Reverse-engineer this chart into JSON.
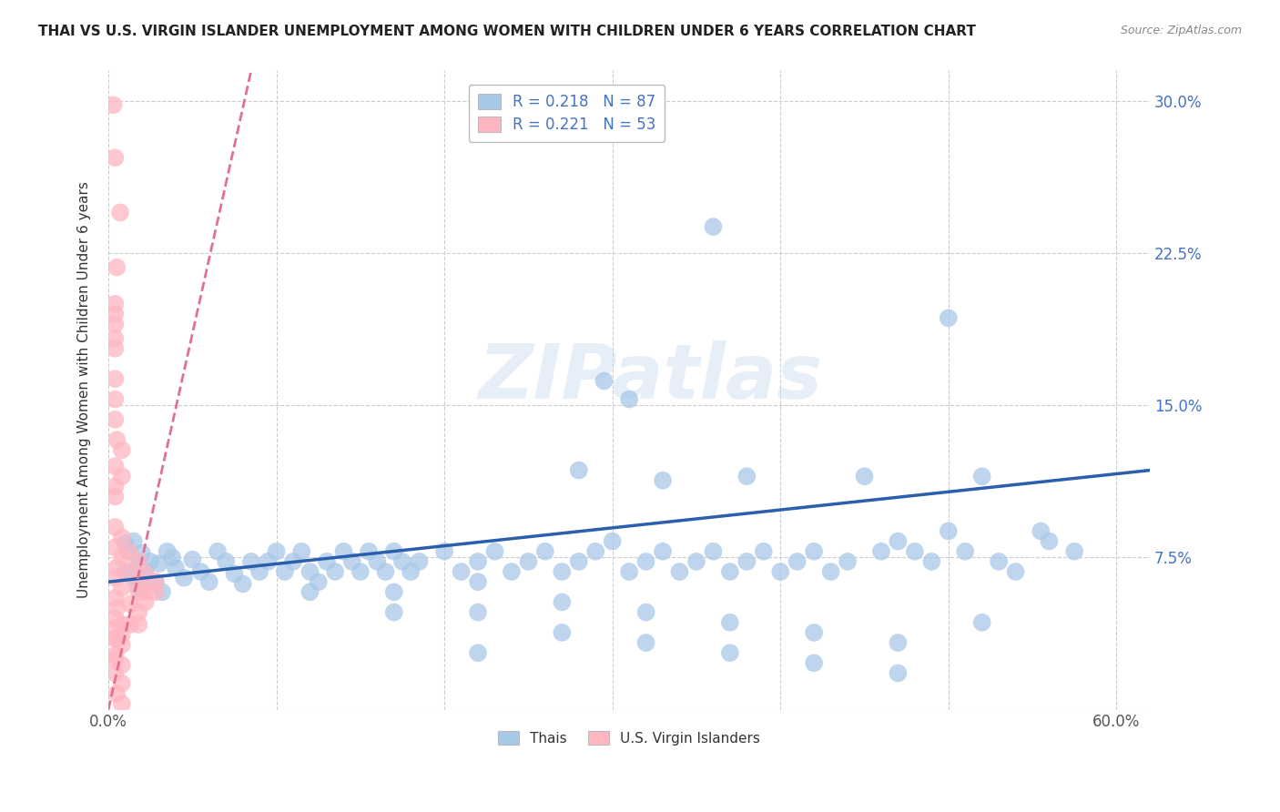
{
  "title": "THAI VS U.S. VIRGIN ISLANDER UNEMPLOYMENT AMONG WOMEN WITH CHILDREN UNDER 6 YEARS CORRELATION CHART",
  "source": "Source: ZipAtlas.com",
  "ylabel": "Unemployment Among Women with Children Under 6 years",
  "xlim": [
    0.0,
    0.62
  ],
  "ylim": [
    0.0,
    0.315
  ],
  "xticks": [
    0.0,
    0.1,
    0.2,
    0.3,
    0.4,
    0.5,
    0.6
  ],
  "xticklabels": [
    "0.0%",
    "",
    "",
    "",
    "",
    "",
    "60.0%"
  ],
  "yticks": [
    0.0,
    0.075,
    0.15,
    0.225,
    0.3
  ],
  "right_yticklabels": [
    "",
    "7.5%",
    "15.0%",
    "22.5%",
    "30.0%"
  ],
  "legend_entries": [
    {
      "label": "R = 0.218   N = 87",
      "color": "#aec6e8"
    },
    {
      "label": "R = 0.221   N = 53",
      "color": "#ffb6c1"
    }
  ],
  "legend_bottom": [
    "Thais",
    "U.S. Virgin Islanders"
  ],
  "legend_bottom_colors": [
    "#aec6e8",
    "#ffb6c1"
  ],
  "watermark": "ZIPatlas",
  "blue_scatter_color": "#a8c8e8",
  "pink_scatter_color": "#ffb6c1",
  "blue_line_color": "#2b5fad",
  "pink_line_color": "#e07090",
  "grid_color": "#cccccc",
  "title_color": "#222222",
  "right_ytick_color": "#4472c4",
  "blue_line_x0": 0.0,
  "blue_line_y0": 0.063,
  "blue_line_x1": 0.62,
  "blue_line_y1": 0.118,
  "pink_line_x0": 0.0,
  "pink_line_y0": 0.0,
  "pink_line_x1": 0.085,
  "pink_line_y1": 0.315,
  "blue_points": [
    [
      0.01,
      0.082
    ],
    [
      0.012,
      0.078
    ],
    [
      0.015,
      0.083
    ],
    [
      0.018,
      0.072
    ],
    [
      0.02,
      0.077
    ],
    [
      0.022,
      0.068
    ],
    [
      0.025,
      0.073
    ],
    [
      0.01,
      0.068
    ],
    [
      0.015,
      0.065
    ],
    [
      0.018,
      0.06
    ],
    [
      0.03,
      0.072
    ],
    [
      0.035,
      0.078
    ],
    [
      0.038,
      0.075
    ],
    [
      0.028,
      0.063
    ],
    [
      0.032,
      0.058
    ],
    [
      0.04,
      0.07
    ],
    [
      0.045,
      0.065
    ],
    [
      0.05,
      0.074
    ],
    [
      0.055,
      0.068
    ],
    [
      0.06,
      0.063
    ],
    [
      0.065,
      0.078
    ],
    [
      0.07,
      0.073
    ],
    [
      0.075,
      0.067
    ],
    [
      0.08,
      0.062
    ],
    [
      0.085,
      0.073
    ],
    [
      0.09,
      0.068
    ],
    [
      0.095,
      0.073
    ],
    [
      0.1,
      0.078
    ],
    [
      0.105,
      0.068
    ],
    [
      0.11,
      0.073
    ],
    [
      0.115,
      0.078
    ],
    [
      0.12,
      0.068
    ],
    [
      0.125,
      0.063
    ],
    [
      0.13,
      0.073
    ],
    [
      0.135,
      0.068
    ],
    [
      0.14,
      0.078
    ],
    [
      0.145,
      0.073
    ],
    [
      0.15,
      0.068
    ],
    [
      0.155,
      0.078
    ],
    [
      0.16,
      0.073
    ],
    [
      0.165,
      0.068
    ],
    [
      0.17,
      0.078
    ],
    [
      0.175,
      0.073
    ],
    [
      0.18,
      0.068
    ],
    [
      0.185,
      0.073
    ],
    [
      0.2,
      0.078
    ],
    [
      0.21,
      0.068
    ],
    [
      0.22,
      0.073
    ],
    [
      0.23,
      0.078
    ],
    [
      0.24,
      0.068
    ],
    [
      0.25,
      0.073
    ],
    [
      0.26,
      0.078
    ],
    [
      0.27,
      0.068
    ],
    [
      0.28,
      0.073
    ],
    [
      0.29,
      0.078
    ],
    [
      0.3,
      0.083
    ],
    [
      0.31,
      0.068
    ],
    [
      0.32,
      0.073
    ],
    [
      0.33,
      0.078
    ],
    [
      0.34,
      0.068
    ],
    [
      0.35,
      0.073
    ],
    [
      0.36,
      0.078
    ],
    [
      0.37,
      0.068
    ],
    [
      0.38,
      0.073
    ],
    [
      0.39,
      0.078
    ],
    [
      0.4,
      0.068
    ],
    [
      0.41,
      0.073
    ],
    [
      0.42,
      0.078
    ],
    [
      0.43,
      0.068
    ],
    [
      0.44,
      0.073
    ],
    [
      0.45,
      0.115
    ],
    [
      0.46,
      0.078
    ],
    [
      0.47,
      0.083
    ],
    [
      0.48,
      0.078
    ],
    [
      0.49,
      0.073
    ],
    [
      0.5,
      0.088
    ],
    [
      0.51,
      0.078
    ],
    [
      0.52,
      0.115
    ],
    [
      0.53,
      0.073
    ],
    [
      0.17,
      0.058
    ],
    [
      0.22,
      0.063
    ],
    [
      0.27,
      0.053
    ],
    [
      0.32,
      0.048
    ],
    [
      0.37,
      0.043
    ],
    [
      0.42,
      0.038
    ],
    [
      0.47,
      0.033
    ],
    [
      0.52,
      0.043
    ],
    [
      0.28,
      0.118
    ],
    [
      0.33,
      0.113
    ],
    [
      0.38,
      0.115
    ]
  ],
  "blue_outlier_points": [
    [
      0.36,
      0.238
    ],
    [
      0.295,
      0.162
    ],
    [
      0.31,
      0.153
    ],
    [
      0.5,
      0.193
    ],
    [
      0.555,
      0.088
    ],
    [
      0.575,
      0.078
    ],
    [
      0.12,
      0.058
    ],
    [
      0.17,
      0.048
    ],
    [
      0.22,
      0.048
    ],
    [
      0.27,
      0.038
    ],
    [
      0.22,
      0.028
    ],
    [
      0.32,
      0.033
    ],
    [
      0.37,
      0.028
    ],
    [
      0.42,
      0.023
    ],
    [
      0.47,
      0.018
    ],
    [
      0.56,
      0.083
    ],
    [
      0.54,
      0.068
    ]
  ],
  "pink_points": [
    [
      0.003,
      0.298
    ],
    [
      0.004,
      0.272
    ],
    [
      0.007,
      0.245
    ],
    [
      0.005,
      0.218
    ],
    [
      0.004,
      0.2
    ],
    [
      0.004,
      0.195
    ],
    [
      0.004,
      0.19
    ],
    [
      0.004,
      0.183
    ],
    [
      0.004,
      0.178
    ],
    [
      0.004,
      0.163
    ],
    [
      0.004,
      0.153
    ],
    [
      0.004,
      0.143
    ],
    [
      0.005,
      0.133
    ],
    [
      0.008,
      0.128
    ],
    [
      0.004,
      0.12
    ],
    [
      0.008,
      0.115
    ],
    [
      0.004,
      0.11
    ],
    [
      0.004,
      0.105
    ],
    [
      0.004,
      0.09
    ],
    [
      0.008,
      0.085
    ],
    [
      0.004,
      0.08
    ],
    [
      0.008,
      0.075
    ],
    [
      0.005,
      0.07
    ],
    [
      0.004,
      0.065
    ],
    [
      0.008,
      0.06
    ],
    [
      0.004,
      0.055
    ],
    [
      0.005,
      0.05
    ],
    [
      0.004,
      0.045
    ],
    [
      0.004,
      0.04
    ],
    [
      0.005,
      0.035
    ],
    [
      0.008,
      0.032
    ],
    [
      0.004,
      0.027
    ],
    [
      0.008,
      0.022
    ],
    [
      0.004,
      0.018
    ],
    [
      0.008,
      0.013
    ],
    [
      0.005,
      0.008
    ],
    [
      0.008,
      0.003
    ],
    [
      0.012,
      0.078
    ],
    [
      0.018,
      0.073
    ],
    [
      0.013,
      0.068
    ],
    [
      0.018,
      0.063
    ],
    [
      0.022,
      0.067
    ],
    [
      0.028,
      0.063
    ],
    [
      0.022,
      0.058
    ],
    [
      0.018,
      0.058
    ],
    [
      0.022,
      0.053
    ],
    [
      0.028,
      0.058
    ],
    [
      0.018,
      0.048
    ],
    [
      0.013,
      0.052
    ],
    [
      0.008,
      0.042
    ],
    [
      0.013,
      0.042
    ],
    [
      0.008,
      0.037
    ],
    [
      0.018,
      0.042
    ],
    [
      0.004,
      0.035
    ],
    [
      0.004,
      0.025
    ]
  ]
}
